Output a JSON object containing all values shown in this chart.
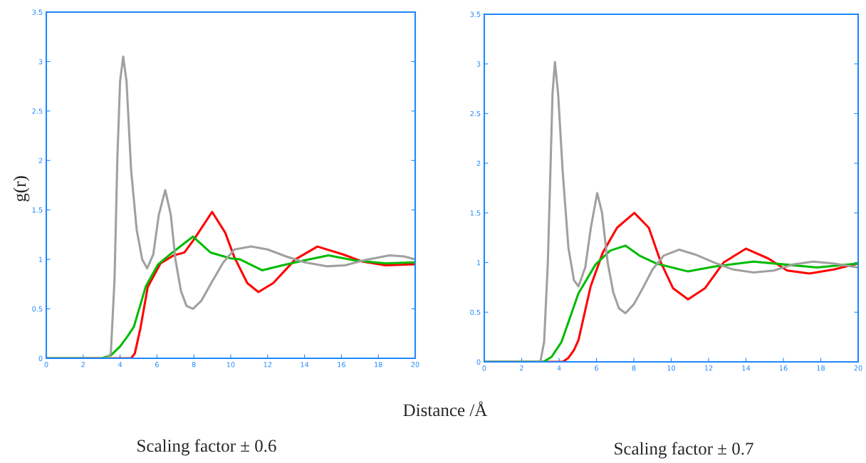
{
  "chart_data": [
    {
      "type": "line",
      "ylabel": "g(r)",
      "xlabel": "Distance /Å",
      "annotations": [
        "Scaling factor ± 0.6"
      ],
      "xlim": [
        0,
        20
      ],
      "ylim": [
        0,
        3.5
      ],
      "xticks": [
        0,
        2,
        4,
        6,
        8,
        10,
        12,
        14,
        16,
        18,
        20
      ],
      "yticks": [
        0,
        0.5,
        1,
        1.5,
        2,
        2.5,
        3,
        3.5
      ],
      "grid": false,
      "marker": "none",
      "line_style": "solid",
      "series": [
        {
          "color": "#ff0000",
          "x": [
            0,
            4.6,
            4.8,
            5.1,
            5.5,
            6.19,
            6.9,
            7.49,
            8.0,
            8.99,
            9.7,
            10.2,
            10.9,
            11.5,
            12.3,
            13.5,
            14.7,
            16.1,
            17.1,
            18.4,
            20
          ],
          "values": [
            0,
            0,
            0.05,
            0.3,
            0.72,
            0.96,
            1.04,
            1.07,
            1.2,
            1.48,
            1.27,
            1.02,
            0.76,
            0.67,
            0.76,
            1.0,
            1.13,
            1.05,
            0.98,
            0.94,
            0.95
          ]
        },
        {
          "color": "#00bb00",
          "x": [
            0,
            3.0,
            3.5,
            4.0,
            4.4,
            4.75,
            5.4,
            6.06,
            6.84,
            7.95,
            8.9,
            10.0,
            10.5,
            11.7,
            12.8,
            14.0,
            15.3,
            16.7,
            18.4,
            20
          ],
          "values": [
            0,
            0,
            0.03,
            0.12,
            0.22,
            0.32,
            0.73,
            0.95,
            1.07,
            1.23,
            1.07,
            1.01,
            1.0,
            0.89,
            0.94,
            0.99,
            1.04,
            0.99,
            0.96,
            0.97
          ]
        },
        {
          "color": "#a0a0a0",
          "x": [
            0,
            3.3,
            3.5,
            3.7,
            3.85,
            4.0,
            4.17,
            4.35,
            4.6,
            4.9,
            5.2,
            5.47,
            5.8,
            6.1,
            6.45,
            6.75,
            7.0,
            7.3,
            7.6,
            7.95,
            8.4,
            9.0,
            9.6,
            10.2,
            11.1,
            12.0,
            13.0,
            14.0,
            15.2,
            16.2,
            17.2,
            18.6,
            19.4,
            20
          ],
          "values": [
            0,
            0,
            0.05,
            0.8,
            2.0,
            2.8,
            3.05,
            2.8,
            1.9,
            1.3,
            1.0,
            0.91,
            1.05,
            1.45,
            1.7,
            1.45,
            1.0,
            0.68,
            0.53,
            0.5,
            0.58,
            0.78,
            0.97,
            1.1,
            1.13,
            1.1,
            1.03,
            0.97,
            0.93,
            0.94,
            0.99,
            1.04,
            1.03,
            1.0
          ]
        }
      ]
    },
    {
      "type": "line",
      "annotations": [
        "Scaling factor ± 0.7"
      ],
      "xlim": [
        0,
        20
      ],
      "ylim": [
        0,
        3.5
      ],
      "xticks": [
        0,
        2,
        4,
        6,
        8,
        10,
        12,
        14,
        16,
        18,
        20
      ],
      "yticks": [
        0,
        0.5,
        1,
        1.5,
        2,
        2.5,
        3,
        3.5
      ],
      "grid": false,
      "marker": "none",
      "line_style": "solid",
      "series": [
        {
          "color": "#ff0000",
          "x": [
            0,
            4.2,
            4.5,
            4.8,
            5.04,
            5.69,
            6.34,
            7.1,
            8.03,
            8.8,
            9.45,
            10.1,
            10.9,
            11.8,
            12.8,
            14.0,
            15.2,
            16.2,
            17.4,
            18.7,
            20
          ],
          "values": [
            0,
            0,
            0.04,
            0.12,
            0.22,
            0.76,
            1.1,
            1.35,
            1.5,
            1.35,
            1.0,
            0.74,
            0.63,
            0.74,
            1.0,
            1.14,
            1.04,
            0.92,
            0.89,
            0.93,
            0.99
          ]
        },
        {
          "color": "#00bb00",
          "x": [
            0,
            3.16,
            3.6,
            4.13,
            5.04,
            5.95,
            6.73,
            7.55,
            8.3,
            9.2,
            10.9,
            12.3,
            14.4,
            16.1,
            17.8,
            20
          ],
          "values": [
            0,
            0,
            0.05,
            0.2,
            0.69,
            0.98,
            1.12,
            1.17,
            1.07,
            0.99,
            0.91,
            0.96,
            1.01,
            0.98,
            0.95,
            0.99
          ]
        },
        {
          "color": "#a0a0a0",
          "x": [
            0,
            3.0,
            3.2,
            3.4,
            3.55,
            3.65,
            3.78,
            3.95,
            4.2,
            4.5,
            4.8,
            5.04,
            5.4,
            5.7,
            6.04,
            6.3,
            6.6,
            6.9,
            7.2,
            7.55,
            8.0,
            8.5,
            9.0,
            9.6,
            10.43,
            11.3,
            12.3,
            13.3,
            14.4,
            15.5,
            16.5,
            17.6,
            18.7,
            20
          ],
          "values": [
            0,
            0,
            0.2,
            1.0,
            2.0,
            2.7,
            3.02,
            2.7,
            1.9,
            1.15,
            0.82,
            0.76,
            0.95,
            1.35,
            1.7,
            1.5,
            1.0,
            0.7,
            0.54,
            0.49,
            0.58,
            0.75,
            0.93,
            1.07,
            1.13,
            1.08,
            1.0,
            0.93,
            0.9,
            0.92,
            0.98,
            1.01,
            0.99,
            0.95
          ]
        }
      ]
    }
  ]
}
